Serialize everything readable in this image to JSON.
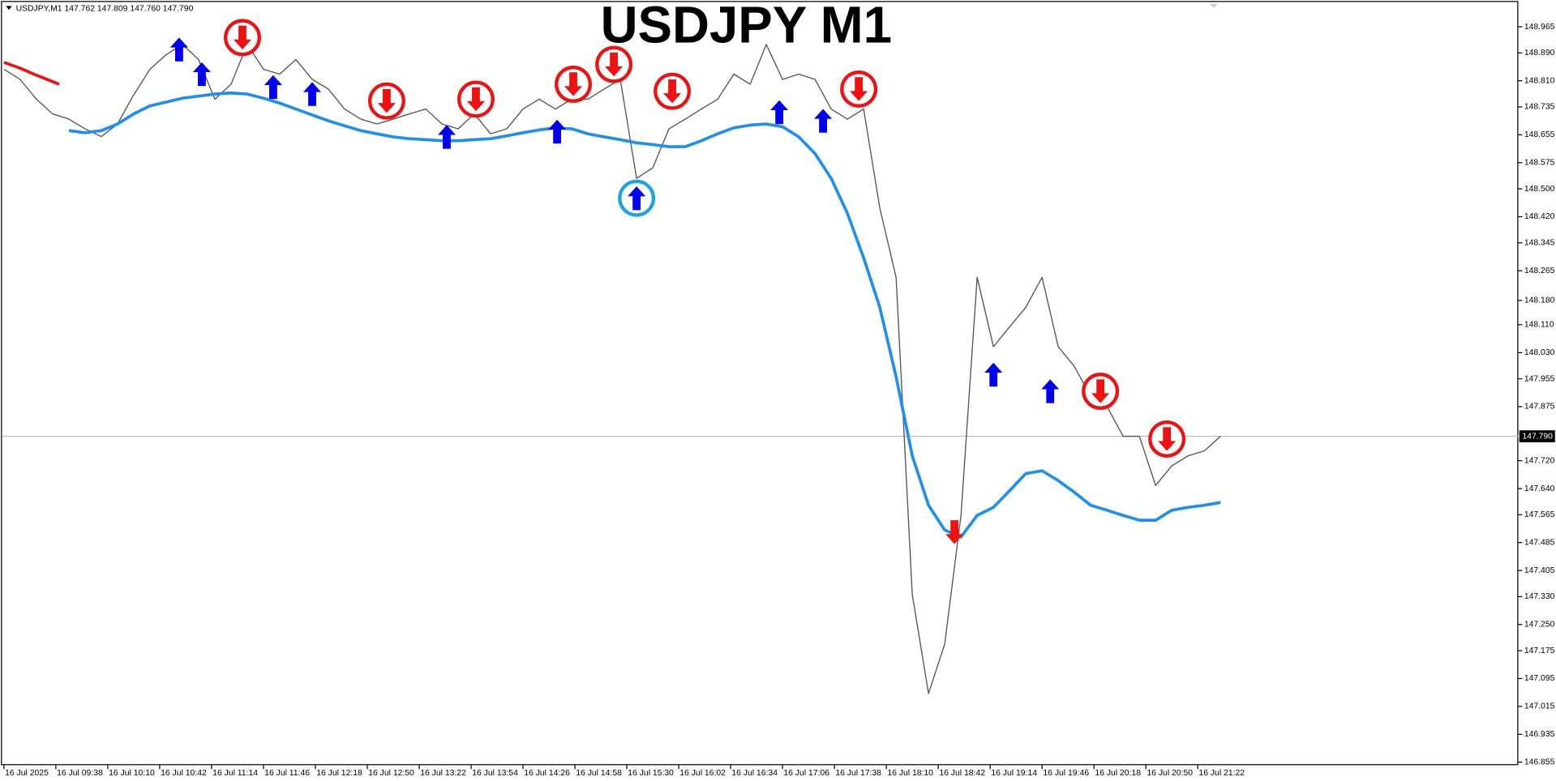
{
  "chart_data": {
    "type": "line",
    "title": "USDJPY M1",
    "header": "USDJPY,M1  147.762 147.809 147.760 147.790",
    "x": [
      "16 Jul 09:06",
      "16 Jul 09:16",
      "16 Jul 09:26",
      "16 Jul 09:36",
      "16 Jul 09:46",
      "16 Jul 09:56",
      "16 Jul 10:06",
      "16 Jul 10:16",
      "16 Jul 10:26",
      "16 Jul 10:36",
      "16 Jul 10:46",
      "16 Jul 10:56",
      "16 Jul 11:06",
      "16 Jul 11:16",
      "16 Jul 11:26",
      "16 Jul 11:36",
      "16 Jul 11:46",
      "16 Jul 11:56",
      "16 Jul 12:06",
      "16 Jul 12:16",
      "16 Jul 12:26",
      "16 Jul 12:36",
      "16 Jul 12:46",
      "16 Jul 12:56",
      "16 Jul 13:06",
      "16 Jul 13:16",
      "16 Jul 13:26",
      "16 Jul 13:36",
      "16 Jul 13:46",
      "16 Jul 13:56",
      "16 Jul 14:06",
      "16 Jul 14:16",
      "16 Jul 14:26",
      "16 Jul 14:36",
      "16 Jul 14:46",
      "16 Jul 14:56",
      "16 Jul 15:06",
      "16 Jul 15:16",
      "16 Jul 15:26",
      "16 Jul 15:36",
      "16 Jul 15:46",
      "16 Jul 15:56",
      "16 Jul 16:06",
      "16 Jul 16:16",
      "16 Jul 16:26",
      "16 Jul 16:36",
      "16 Jul 16:46",
      "16 Jul 16:56",
      "16 Jul 17:06",
      "16 Jul 17:16",
      "16 Jul 17:26",
      "16 Jul 17:36",
      "16 Jul 17:46",
      "16 Jul 17:56",
      "16 Jul 18:06",
      "16 Jul 18:16",
      "16 Jul 18:26",
      "16 Jul 18:36",
      "16 Jul 18:46",
      "16 Jul 18:56",
      "16 Jul 19:06",
      "16 Jul 19:16",
      "16 Jul 19:26",
      "16 Jul 19:36",
      "16 Jul 19:46",
      "16 Jul 19:56",
      "16 Jul 20:06",
      "16 Jul 20:16",
      "16 Jul 20:26",
      "16 Jul 20:36",
      "16 Jul 20:46",
      "16 Jul 20:56",
      "16 Jul 21:06",
      "16 Jul 21:16",
      "16 Jul 21:26",
      "16 Jul 21:36"
    ],
    "series": [
      {
        "color": "#555555",
        "values": [
          148.843,
          148.814,
          148.757,
          148.715,
          148.7,
          148.672,
          148.65,
          148.686,
          148.77,
          148.843,
          148.885,
          148.914,
          148.871,
          148.757,
          148.8,
          148.914,
          148.843,
          148.829,
          148.871,
          148.814,
          148.786,
          148.729,
          148.7,
          148.686,
          148.7,
          148.715,
          148.729,
          148.686,
          148.672,
          148.715,
          148.658,
          148.672,
          148.729,
          148.757,
          148.729,
          148.757,
          148.757,
          148.786,
          148.814,
          148.53,
          148.56,
          148.672,
          148.7,
          148.729,
          148.757,
          148.829,
          148.8,
          148.914,
          148.814,
          148.829,
          148.814,
          148.729,
          148.7,
          148.729,
          148.445,
          148.246,
          147.336,
          147.052,
          147.194,
          147.563,
          148.246,
          148.047,
          148.104,
          148.16,
          148.246,
          148.047,
          147.99,
          147.904,
          147.876,
          147.79,
          147.79,
          147.649,
          147.705,
          147.734,
          147.748,
          147.79
        ]
      },
      {
        "color": "#1e8fef",
        "values": [
          null,
          null,
          null,
          null,
          148.667,
          148.661,
          148.667,
          148.686,
          148.715,
          148.738,
          148.749,
          148.76,
          148.766,
          148.772,
          148.775,
          148.772,
          148.76,
          148.746,
          148.729,
          148.712,
          148.695,
          148.681,
          148.667,
          148.658,
          148.649,
          148.644,
          148.641,
          148.638,
          148.638,
          148.641,
          148.644,
          148.652,
          148.661,
          148.669,
          148.675,
          148.672,
          148.658,
          148.649,
          148.641,
          148.632,
          148.627,
          148.621,
          148.621,
          148.638,
          148.658,
          148.675,
          148.683,
          148.686,
          148.678,
          148.649,
          148.601,
          148.53,
          148.43,
          148.302,
          148.16,
          147.961,
          147.734,
          147.592,
          147.521,
          147.501,
          147.563,
          147.586,
          147.634,
          147.683,
          147.691,
          147.663,
          147.629,
          147.592,
          147.578,
          147.563,
          147.549,
          147.549,
          147.578,
          147.586,
          147.592,
          147.6
        ]
      },
      {
        "color": "#ee1111",
        "x": [
          "16 Jul 09:06",
          "16 Jul 09:16",
          "16 Jul 09:26",
          "16 Jul 09:40"
        ],
        "values": [
          148.863,
          148.846,
          148.826,
          148.8
        ]
      }
    ],
    "signals": [
      {
        "marker": "arrow-up",
        "color": "#0000ee",
        "x": [
          "16 Jul 10:54",
          "16 Jul 11:08",
          "16 Jul 11:52",
          "16 Jul 12:16",
          "16 Jul 13:39",
          "16 Jul 14:47",
          "16 Jul 17:04",
          "16 Jul 17:31",
          "16 Jul 19:16",
          "16 Jul 19:51"
        ],
        "values": [
          148.9,
          148.829,
          148.792,
          148.772,
          148.649,
          148.664,
          148.72,
          148.695,
          147.967,
          147.919
        ]
      },
      {
        "marker": "arrow-up",
        "color": "#0000ee",
        "ring_color": "#1ca3e0",
        "x": [
          "16 Jul 15:36"
        ],
        "values": [
          148.473
        ]
      },
      {
        "marker": "arrow-down",
        "color": "#ee1111",
        "ring_color": "#ee1111",
        "x": [
          "16 Jul 11:33",
          "16 Jul 13:02",
          "16 Jul 13:57",
          "16 Jul 14:57",
          "16 Jul 15:22",
          "16 Jul 15:58",
          "16 Jul 17:53",
          "16 Jul 20:22",
          "16 Jul 21:03"
        ],
        "values": [
          148.934,
          148.752,
          148.757,
          148.8,
          148.857,
          148.78,
          148.786,
          147.919,
          147.782
        ]
      },
      {
        "marker": "arrow-down",
        "color": "#ee1111",
        "x": [
          "16 Jul 18:52"
        ],
        "values": [
          147.515
        ]
      }
    ],
    "ylim": [
      146.855,
      148.965
    ],
    "yticks": [
      148.965,
      {
        "value": 148.89,
        "label": "148.890"
      },
      {
        "value": 148.81,
        "label": "148.810"
      },
      148.735,
      148.655,
      148.575,
      {
        "value": 148.5,
        "label": "148.500"
      },
      {
        "value": 148.42,
        "label": "148.420"
      },
      148.345,
      148.265,
      {
        "value": 148.18,
        "label": "148.180"
      },
      {
        "value": 148.11,
        "label": "148.110"
      },
      {
        "value": 148.03,
        "label": "148.030"
      },
      147.955,
      147.875,
      {
        "value": 147.72,
        "label": "147.720"
      },
      {
        "value": 147.64,
        "label": "147.640"
      },
      147.565,
      147.485,
      147.405,
      {
        "value": 147.33,
        "label": "147.330"
      },
      {
        "value": 147.25,
        "label": "147.250"
      },
      147.175,
      147.095,
      147.015,
      146.935,
      146.855
    ],
    "xticks": [
      {
        "value": "16 Jul 09:06",
        "label": "16 Jul 2025"
      },
      "16 Jul 09:38",
      "16 Jul 10:10",
      "16 Jul 10:42",
      "16 Jul 11:14",
      "16 Jul 11:46",
      "16 Jul 12:18",
      "16 Jul 12:50",
      "16 Jul 13:22",
      "16 Jul 13:54",
      "16 Jul 14:26",
      "16 Jul 14:58",
      "16 Jul 15:30",
      "16 Jul 16:02",
      "16 Jul 16:34",
      "16 Jul 17:06",
      "16 Jul 17:38",
      "16 Jul 18:10",
      "16 Jul 18:42",
      "16 Jul 19:14",
      "16 Jul 19:46",
      "16 Jul 20:18",
      "16 Jul 20:50",
      "16 Jul 21:22"
    ],
    "last_price": {
      "value": 147.79,
      "label": "147.790"
    }
  }
}
